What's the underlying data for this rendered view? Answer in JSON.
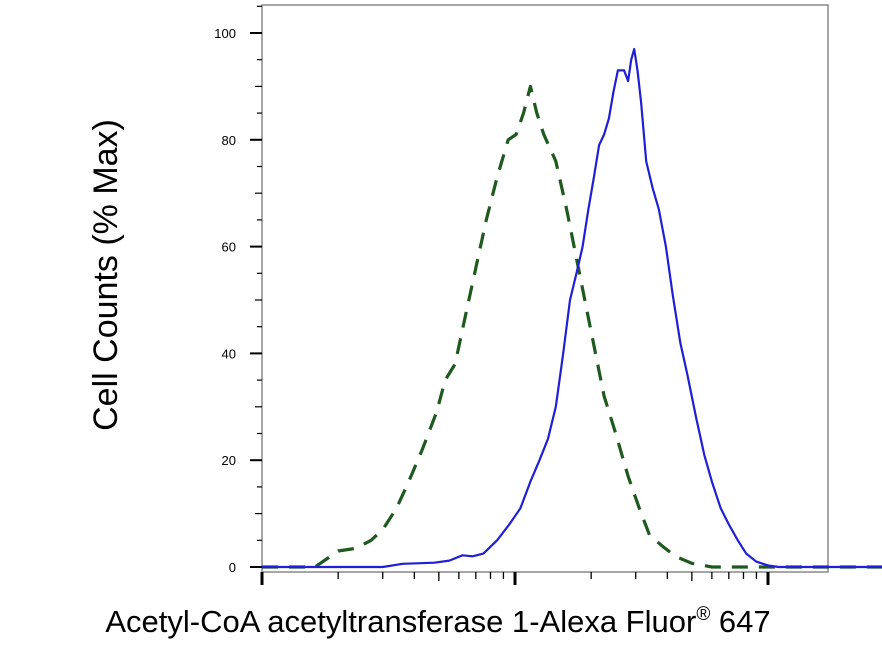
{
  "chart_data": {
    "type": "line",
    "title": "",
    "xlabel": "Acetyl-CoA acetyltransferase 1-Alexa Fluor",
    "xlabel_superscript": "®",
    "xlabel_suffix": " 647",
    "ylabel": "Cell Counts (% Max)",
    "x_scale": "log",
    "x_tick_labels": [],
    "xlim": [
      1,
      1000
    ],
    "ylim": [
      -1,
      105
    ],
    "y_ticks": [
      0,
      20,
      40,
      60,
      80,
      100
    ],
    "y_tick_labels": [
      "0",
      "20",
      "40",
      "60",
      "80",
      "100"
    ],
    "grid": false,
    "legend": "none",
    "series": [
      {
        "style": "dashed",
        "color": "#1e5a1e",
        "points": [
          [
            1.0,
            0
          ],
          [
            1.62,
            0
          ],
          [
            1.8,
            1.5
          ],
          [
            2.0,
            3
          ],
          [
            2.35,
            3.5
          ],
          [
            2.7,
            5
          ],
          [
            3.0,
            7
          ],
          [
            3.4,
            11
          ],
          [
            3.8,
            16
          ],
          [
            4.3,
            22
          ],
          [
            4.9,
            29
          ],
          [
            5.3,
            35
          ],
          [
            5.8,
            38
          ],
          [
            6.3,
            46
          ],
          [
            7.0,
            56
          ],
          [
            7.7,
            65
          ],
          [
            8.5,
            73
          ],
          [
            9.4,
            80
          ],
          [
            10.1,
            81
          ],
          [
            10.8,
            85
          ],
          [
            11.5,
            90
          ],
          [
            12.2,
            85
          ],
          [
            13.0,
            81
          ],
          [
            14.5,
            76
          ],
          [
            16.0,
            67
          ],
          [
            17.8,
            56
          ],
          [
            20.0,
            44
          ],
          [
            22.5,
            32
          ],
          [
            25.0,
            25
          ],
          [
            28.0,
            17
          ],
          [
            31.0,
            11
          ],
          [
            34.0,
            6
          ],
          [
            38.0,
            4
          ],
          [
            43.0,
            2
          ],
          [
            50.0,
            0.7
          ],
          [
            60.0,
            0
          ],
          [
            1000,
            0
          ]
        ]
      },
      {
        "style": "solid",
        "color": "#1f1fd6",
        "points": [
          [
            1.0,
            0
          ],
          [
            3.0,
            0
          ],
          [
            3.6,
            0.6
          ],
          [
            4.8,
            0.8
          ],
          [
            5.5,
            1.2
          ],
          [
            6.2,
            2.2
          ],
          [
            6.8,
            2.0
          ],
          [
            7.5,
            2.5
          ],
          [
            8.5,
            5
          ],
          [
            9.5,
            8
          ],
          [
            10.5,
            11
          ],
          [
            11.5,
            16
          ],
          [
            12.5,
            20
          ],
          [
            13.5,
            24
          ],
          [
            14.5,
            30
          ],
          [
            15.5,
            40
          ],
          [
            16.5,
            50
          ],
          [
            17.5,
            55
          ],
          [
            18.5,
            60
          ],
          [
            19.5,
            67
          ],
          [
            20.5,
            73
          ],
          [
            21.5,
            79
          ],
          [
            22.5,
            81
          ],
          [
            23.5,
            84
          ],
          [
            24.5,
            89
          ],
          [
            25.5,
            93
          ],
          [
            27.0,
            93
          ],
          [
            28.0,
            91
          ],
          [
            28.8,
            95
          ],
          [
            29.6,
            97
          ],
          [
            30.5,
            93
          ],
          [
            31.5,
            87
          ],
          [
            33.0,
            76
          ],
          [
            35.0,
            71
          ],
          [
            37.0,
            67
          ],
          [
            39.5,
            60
          ],
          [
            42.0,
            51
          ],
          [
            45.0,
            42
          ],
          [
            48.0,
            36
          ],
          [
            52.0,
            28
          ],
          [
            56.0,
            21
          ],
          [
            60.0,
            16
          ],
          [
            65.0,
            11
          ],
          [
            70.0,
            8
          ],
          [
            76.0,
            5
          ],
          [
            82.0,
            2.5
          ],
          [
            90.0,
            1
          ],
          [
            100,
            0.3
          ],
          [
            110,
            0
          ],
          [
            1000,
            0
          ]
        ]
      }
    ]
  }
}
